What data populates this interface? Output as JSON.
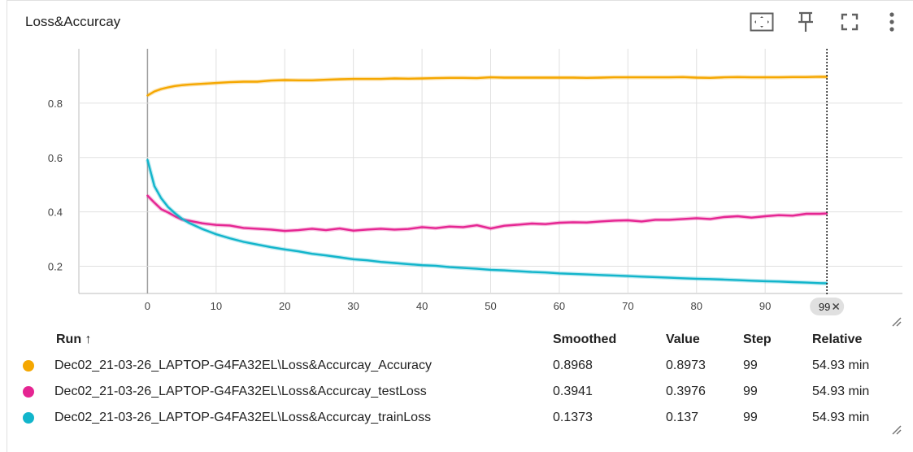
{
  "card": {
    "title": "Loss&Accurcay"
  },
  "toolbar": {
    "icons": [
      "fit-domain-icon",
      "pin-icon",
      "fullscreen-icon",
      "more-vert-icon"
    ]
  },
  "chart_data": {
    "type": "line",
    "title": "",
    "xlabel": "",
    "ylabel": "",
    "xlim": [
      -10,
      110
    ],
    "ylim": [
      0.1,
      1.0
    ],
    "x_ticks": [
      "0",
      "10",
      "20",
      "30",
      "40",
      "50",
      "60",
      "70",
      "80",
      "90"
    ],
    "y_ticks": [
      "0.2",
      "0.4",
      "0.6",
      "0.8"
    ],
    "x_tick_values": [
      0,
      10,
      20,
      30,
      40,
      50,
      60,
      70,
      80,
      90
    ],
    "y_tick_values": [
      0.2,
      0.4,
      0.6,
      0.8
    ],
    "grid": true,
    "hover_step_label": "99",
    "series": [
      {
        "color": "#f5a700",
        "x": [
          0,
          1,
          2,
          3,
          4,
          5,
          6,
          8,
          10,
          12,
          14,
          16,
          18,
          20,
          22,
          24,
          26,
          28,
          30,
          32,
          34,
          36,
          38,
          40,
          42,
          44,
          46,
          48,
          50,
          52,
          54,
          56,
          58,
          60,
          62,
          64,
          66,
          68,
          70,
          72,
          74,
          76,
          78,
          80,
          82,
          84,
          86,
          88,
          90,
          92,
          94,
          96,
          98,
          99
        ],
        "y": [
          0.828,
          0.843,
          0.852,
          0.858,
          0.863,
          0.866,
          0.868,
          0.871,
          0.874,
          0.877,
          0.879,
          0.879,
          0.883,
          0.885,
          0.884,
          0.884,
          0.886,
          0.888,
          0.889,
          0.889,
          0.889,
          0.891,
          0.89,
          0.891,
          0.892,
          0.893,
          0.893,
          0.892,
          0.895,
          0.894,
          0.894,
          0.894,
          0.894,
          0.894,
          0.894,
          0.893,
          0.894,
          0.895,
          0.895,
          0.895,
          0.895,
          0.895,
          0.896,
          0.894,
          0.893,
          0.895,
          0.896,
          0.895,
          0.895,
          0.895,
          0.896,
          0.896,
          0.897,
          0.8968
        ]
      },
      {
        "color": "#e52592",
        "x": [
          0,
          1,
          2,
          3,
          4,
          5,
          6,
          8,
          10,
          12,
          14,
          16,
          18,
          20,
          22,
          24,
          26,
          28,
          30,
          32,
          34,
          36,
          38,
          40,
          42,
          44,
          46,
          48,
          50,
          52,
          54,
          56,
          58,
          60,
          62,
          64,
          66,
          68,
          70,
          72,
          74,
          76,
          78,
          80,
          82,
          84,
          86,
          88,
          90,
          92,
          94,
          96,
          98,
          99
        ],
        "y": [
          0.46,
          0.434,
          0.41,
          0.398,
          0.384,
          0.372,
          0.368,
          0.358,
          0.352,
          0.35,
          0.341,
          0.338,
          0.335,
          0.33,
          0.333,
          0.338,
          0.333,
          0.339,
          0.331,
          0.335,
          0.338,
          0.335,
          0.337,
          0.344,
          0.34,
          0.346,
          0.344,
          0.351,
          0.339,
          0.349,
          0.353,
          0.357,
          0.355,
          0.36,
          0.362,
          0.361,
          0.365,
          0.368,
          0.369,
          0.365,
          0.371,
          0.371,
          0.374,
          0.377,
          0.374,
          0.381,
          0.384,
          0.379,
          0.384,
          0.388,
          0.386,
          0.393,
          0.393,
          0.3941
        ]
      },
      {
        "color": "#12b5cb",
        "x": [
          0,
          1,
          2,
          3,
          4,
          5,
          6,
          8,
          10,
          12,
          14,
          16,
          18,
          20,
          22,
          24,
          26,
          28,
          30,
          32,
          34,
          36,
          38,
          40,
          42,
          44,
          46,
          48,
          50,
          52,
          54,
          56,
          58,
          60,
          62,
          64,
          66,
          68,
          70,
          72,
          74,
          76,
          78,
          80,
          82,
          84,
          86,
          88,
          90,
          92,
          94,
          96,
          98,
          99
        ],
        "y": [
          0.592,
          0.495,
          0.45,
          0.418,
          0.395,
          0.375,
          0.36,
          0.337,
          0.318,
          0.303,
          0.29,
          0.28,
          0.27,
          0.262,
          0.255,
          0.246,
          0.24,
          0.233,
          0.226,
          0.222,
          0.216,
          0.212,
          0.208,
          0.204,
          0.202,
          0.197,
          0.194,
          0.191,
          0.187,
          0.185,
          0.182,
          0.179,
          0.177,
          0.174,
          0.172,
          0.17,
          0.168,
          0.166,
          0.164,
          0.162,
          0.16,
          0.158,
          0.156,
          0.154,
          0.153,
          0.151,
          0.149,
          0.147,
          0.145,
          0.144,
          0.142,
          0.14,
          0.138,
          0.1373
        ]
      }
    ]
  },
  "table": {
    "headers": {
      "run": "Run ↑",
      "smoothed": "Smoothed",
      "value": "Value",
      "step": "Step",
      "relative": "Relative"
    },
    "rows": [
      {
        "color": "#f5a700",
        "run": "Dec02_21-03-26_LAPTOP-G4FA32EL\\Loss&Accurcay_Accuracy",
        "smoothed": "0.8968",
        "value": "0.8973",
        "step": "99",
        "relative": "54.93 min"
      },
      {
        "color": "#e52592",
        "run": "Dec02_21-03-26_LAPTOP-G4FA32EL\\Loss&Accurcay_testLoss",
        "smoothed": "0.3941",
        "value": "0.3976",
        "step": "99",
        "relative": "54.93 min"
      },
      {
        "color": "#12b5cb",
        "run": "Dec02_21-03-26_LAPTOP-G4FA32EL\\Loss&Accurcay_trainLoss",
        "smoothed": "0.1373",
        "value": "0.137",
        "step": "99",
        "relative": "54.93 min"
      }
    ]
  }
}
